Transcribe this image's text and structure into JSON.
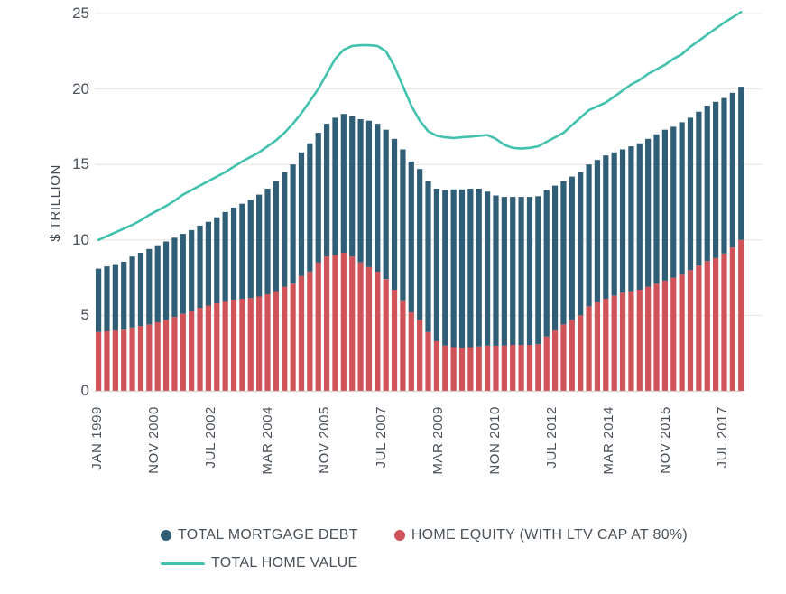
{
  "chart_data": {
    "type": "bar",
    "subtype": "stacked-bars-with-line-overlay",
    "title": "",
    "ylabel": "$ TRILLION",
    "ylim": [
      0,
      25
    ],
    "y_ticks": [
      0,
      5,
      10,
      15,
      20,
      25
    ],
    "grid": "horizontal",
    "legend_position": "bottom",
    "background": "#ffffff",
    "grid_color": "#e8e4de",
    "baseline_color": "#d6d2cc",
    "axis_text_color": "#4a5158",
    "x_tick_labels": [
      "JAN 1999",
      "NOV 2000",
      "JUL 2002",
      "MAR 2004",
      "NOV 2005",
      "JUL 2007",
      "MAR 2009",
      "NON 2010",
      "JUL 2012",
      "MAR 2014",
      "NOV 2015",
      "JUL 2017"
    ],
    "bars_count": 77,
    "series": [
      {
        "name": "TOTAL MORTGAGE DEBT",
        "type": "bar",
        "stack": "top",
        "color": "#305e76",
        "values": [
          4.2,
          4.3,
          4.4,
          4.5,
          4.7,
          4.85,
          5.0,
          5.1,
          5.2,
          5.25,
          5.3,
          5.35,
          5.45,
          5.55,
          5.7,
          5.9,
          6.1,
          6.3,
          6.5,
          6.75,
          7.0,
          7.3,
          7.6,
          7.9,
          8.2,
          8.5,
          8.6,
          8.8,
          9.1,
          9.2,
          9.3,
          9.5,
          9.7,
          9.8,
          9.9,
          10.0,
          10.0,
          10.0,
          10.0,
          10.0,
          10.1,
          10.3,
          10.45,
          10.5,
          10.5,
          10.45,
          10.2,
          9.95,
          9.85,
          9.8,
          9.8,
          9.8,
          9.8,
          9.7,
          9.6,
          9.5,
          9.5,
          9.5,
          9.4,
          9.4,
          9.5,
          9.5,
          9.5,
          9.6,
          9.7,
          9.8,
          9.9,
          10.0,
          10.0,
          10.1,
          10.1,
          10.2,
          10.3,
          10.35,
          10.3,
          10.25,
          10.15
        ]
      },
      {
        "name": "HOME EQUITY (WITH LTV CAP AT 80%)",
        "type": "bar",
        "stack": "bottom",
        "color": "#cf5359",
        "values": [
          3.9,
          3.95,
          4.0,
          4.05,
          4.2,
          4.3,
          4.4,
          4.55,
          4.7,
          4.9,
          5.1,
          5.3,
          5.5,
          5.65,
          5.8,
          5.95,
          6.05,
          6.1,
          6.15,
          6.25,
          6.4,
          6.6,
          6.9,
          7.1,
          7.6,
          7.9,
          8.5,
          8.9,
          9.0,
          9.15,
          8.9,
          8.5,
          8.2,
          7.9,
          7.4,
          6.7,
          6.0,
          5.2,
          4.7,
          3.9,
          3.3,
          3.0,
          2.9,
          2.85,
          2.9,
          2.95,
          3.0,
          3.0,
          3.0,
          3.05,
          3.05,
          3.05,
          3.1,
          3.6,
          4.0,
          4.4,
          4.7,
          5.0,
          5.6,
          5.9,
          6.1,
          6.3,
          6.5,
          6.6,
          6.7,
          6.9,
          7.1,
          7.3,
          7.5,
          7.7,
          8.0,
          8.3,
          8.6,
          8.8,
          9.1,
          9.5,
          10.0
        ]
      },
      {
        "name": "TOTAL HOME VALUE",
        "type": "line",
        "color": "#41c1ae",
        "values": [
          10.0,
          10.25,
          10.5,
          10.75,
          11.0,
          11.3,
          11.65,
          11.95,
          12.25,
          12.6,
          13.0,
          13.3,
          13.6,
          13.9,
          14.2,
          14.5,
          14.85,
          15.2,
          15.5,
          15.8,
          16.2,
          16.6,
          17.1,
          17.7,
          18.4,
          19.2,
          20.0,
          21.0,
          22.0,
          22.6,
          22.85,
          22.9,
          22.9,
          22.85,
          22.5,
          21.5,
          20.2,
          18.9,
          17.9,
          17.2,
          16.9,
          16.8,
          16.75,
          16.8,
          16.85,
          16.9,
          16.95,
          16.7,
          16.3,
          16.1,
          16.05,
          16.1,
          16.2,
          16.5,
          16.8,
          17.1,
          17.6,
          18.1,
          18.6,
          18.85,
          19.1,
          19.5,
          19.9,
          20.3,
          20.6,
          21.0,
          21.3,
          21.6,
          22.0,
          22.3,
          22.8,
          23.2,
          23.6,
          24.0,
          24.4,
          24.75,
          25.1
        ]
      }
    ]
  }
}
